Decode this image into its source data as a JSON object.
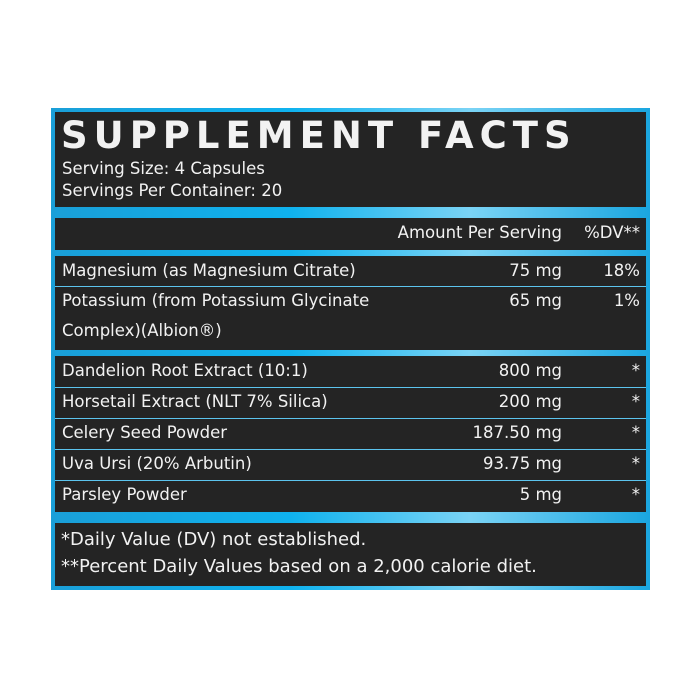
{
  "title": "SUPPLEMENT FACTS",
  "serving_size": "Serving Size: 4 Capsules",
  "servings_per_container": "Servings Per Container: 20",
  "header": {
    "amount": "Amount Per Serving",
    "dv": "%DV**"
  },
  "group1": [
    {
      "name": "Magnesium (as Magnesium Citrate)",
      "amount": "75 mg",
      "dv": "18%"
    },
    {
      "name": "Potassium (from Potassium Glycinate",
      "name2": "Complex)(Albion®)",
      "amount": "65 mg",
      "dv": "1%"
    }
  ],
  "group2": [
    {
      "name": "Dandelion Root Extract (10:1)",
      "amount": "800 mg",
      "dv": "*"
    },
    {
      "name": "Horsetail Extract (NLT 7% Silica)",
      "amount": "200 mg",
      "dv": "*"
    },
    {
      "name": "Celery Seed Powder",
      "amount": "187.50 mg",
      "dv": "*"
    },
    {
      "name": "Uva Ursi (20% Arbutin)",
      "amount": "93.75 mg",
      "dv": "*"
    },
    {
      "name": "Parsley Powder",
      "amount": "5 mg",
      "dv": "*"
    }
  ],
  "footnotes": [
    "*Daily Value (DV) not established.",
    "**Percent Daily Values based on a 2,000 calorie diet."
  ],
  "colors": {
    "frame": "#0fb2ee",
    "panel": "#242424",
    "text": "#f2f2f2"
  }
}
